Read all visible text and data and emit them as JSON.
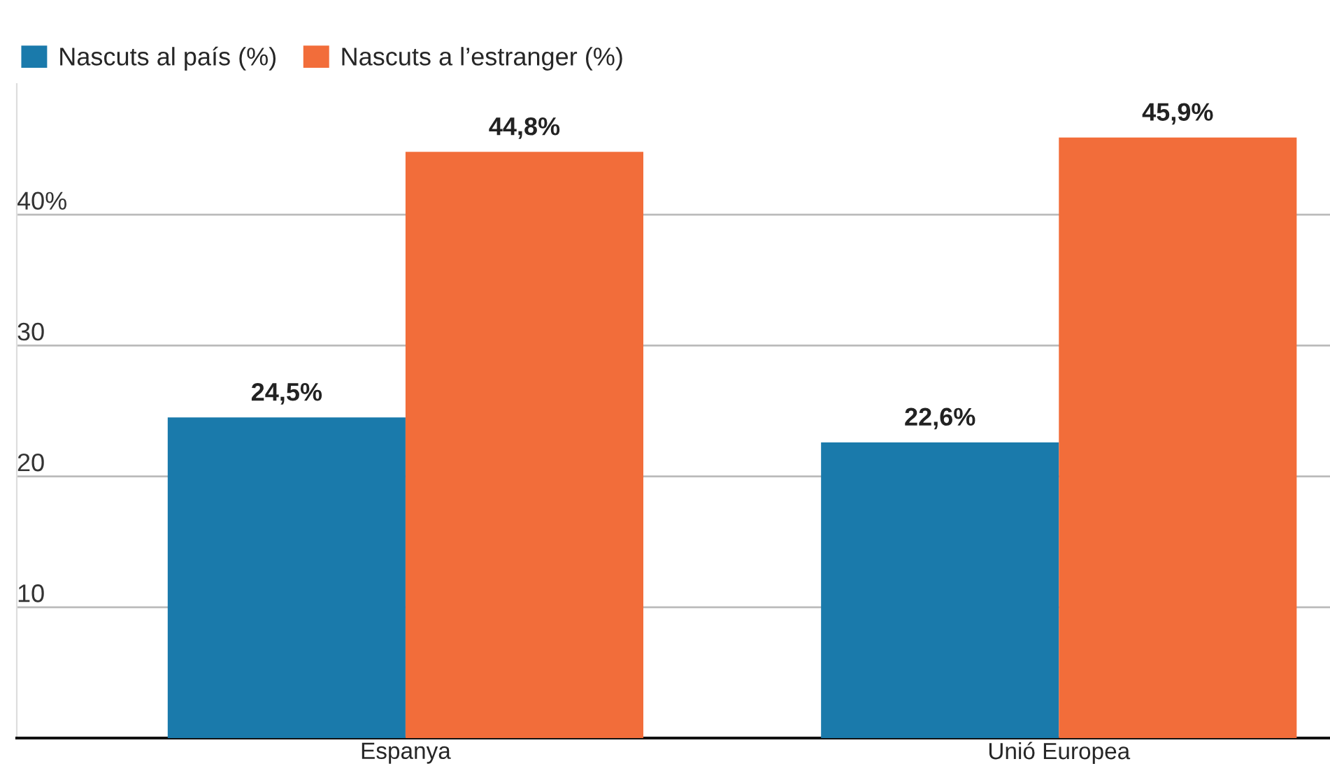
{
  "chart_data": {
    "type": "bar",
    "categories": [
      "Espanya",
      "Unió Europea"
    ],
    "series": [
      {
        "name": "Nascuts al país (%)",
        "color": "#1a7aab",
        "values": [
          24.5,
          22.6
        ],
        "value_labels": [
          "24,5%",
          "22,6%"
        ]
      },
      {
        "name": "Nascuts a l’estranger (%)",
        "color": "#f26d3a",
        "values": [
          44.8,
          45.9
        ],
        "value_labels": [
          "44,8%",
          "45,9%"
        ]
      }
    ],
    "ylim": [
      0,
      50
    ],
    "yticks": [
      10,
      20,
      30,
      {
        "value": 40,
        "label": "40%"
      }
    ],
    "grid": "y",
    "legend": "top left"
  }
}
